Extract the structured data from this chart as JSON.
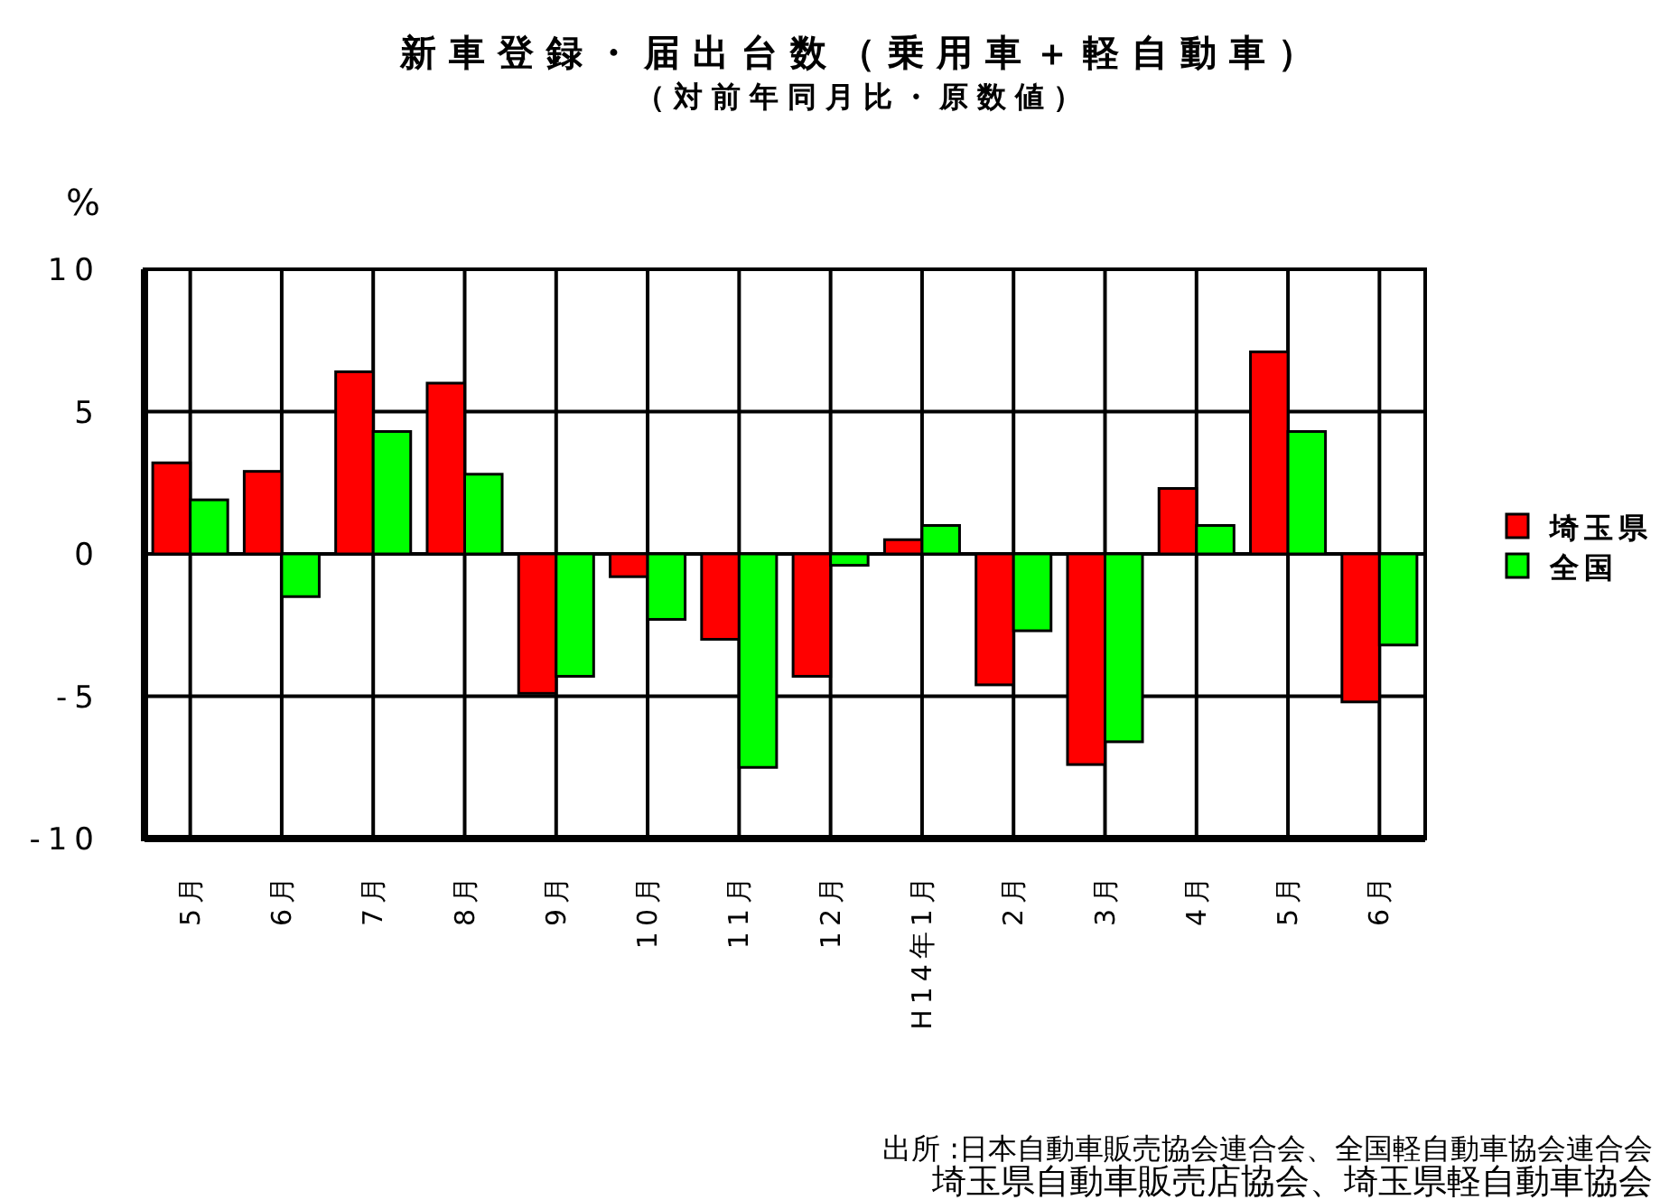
{
  "chart_data": {
    "type": "bar",
    "title": "新車登録・届出台数（乗用車＋軽自動車）",
    "subtitle": "（対前年同月比・原数値）",
    "ylabel": "%",
    "categories": [
      "5月",
      "6月",
      "7月",
      "8月",
      "9月",
      "10月",
      "11月",
      "12月",
      "H14年1月",
      "2月",
      "3月",
      "4月",
      "5月",
      "6月"
    ],
    "series": [
      {
        "name": "埼玉県",
        "color": "#ff0000",
        "values": [
          3.2,
          2.9,
          6.4,
          6.0,
          -4.9,
          -0.8,
          -3.0,
          -4.3,
          0.5,
          -4.6,
          -7.4,
          2.3,
          7.1,
          -5.2
        ]
      },
      {
        "name": "全国",
        "color": "#00ff00",
        "values": [
          1.9,
          -1.5,
          4.3,
          2.8,
          -4.3,
          -2.3,
          -7.5,
          -0.4,
          1.0,
          -2.7,
          -6.6,
          1.0,
          4.3,
          -3.2
        ]
      }
    ],
    "ylim": [
      -10,
      10
    ],
    "yticks": [
      -10,
      -5,
      0,
      5,
      10
    ],
    "grid": true,
    "legend": "right",
    "annotations": [
      "出所 :日本自動車販売協会連合会、全国軽自動車協会連合会",
      "埼玉県自動車販売店協会、埼玉県軽自動車協会"
    ]
  }
}
